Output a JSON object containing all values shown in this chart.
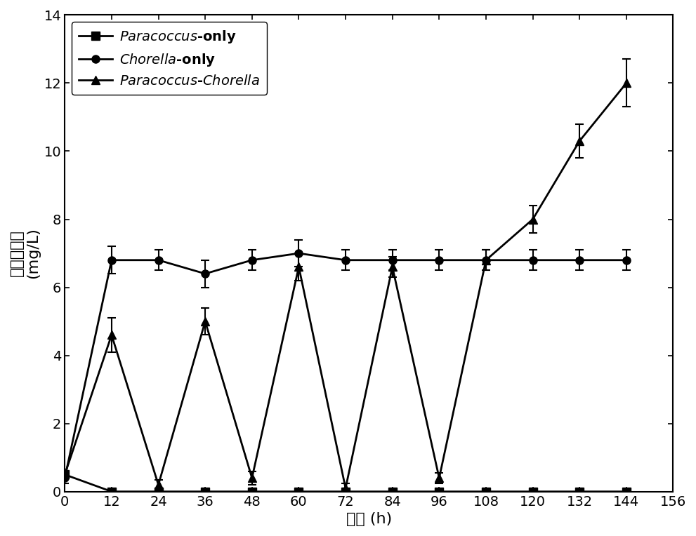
{
  "x": [
    0,
    12,
    24,
    36,
    48,
    60,
    72,
    84,
    96,
    108,
    120,
    132,
    144
  ],
  "paracoccus_only": [
    0.5,
    0.0,
    0.0,
    0.0,
    0.0,
    0.0,
    0.0,
    0.0,
    0.0,
    0.0,
    0.0,
    0.0,
    0.0
  ],
  "paracoccus_only_err": [
    0.1,
    0.05,
    0.05,
    0.05,
    0.05,
    0.05,
    0.05,
    0.05,
    0.05,
    0.05,
    0.05,
    0.05,
    0.05
  ],
  "chorella_only": [
    0.4,
    6.8,
    6.8,
    6.4,
    6.8,
    7.0,
    6.8,
    6.8,
    6.8,
    6.8,
    6.8,
    6.8,
    6.8
  ],
  "chorella_only_err": [
    0.15,
    0.4,
    0.3,
    0.4,
    0.3,
    0.4,
    0.3,
    0.3,
    0.3,
    0.3,
    0.3,
    0.3,
    0.3
  ],
  "paracoccus_chorella": [
    0.5,
    4.6,
    0.2,
    5.0,
    0.4,
    6.6,
    0.1,
    6.6,
    0.4,
    6.8,
    8.0,
    10.3,
    12.0
  ],
  "paracoccus_chorella_err": [
    0.1,
    0.5,
    0.15,
    0.4,
    0.2,
    0.4,
    0.15,
    0.3,
    0.15,
    0.3,
    0.4,
    0.5,
    0.7
  ],
  "xlabel": "时间 (h)",
  "ylabel_line1": "溶解氧浓度",
  "ylabel_line2": "(mg/L)",
  "xlim": [
    0,
    156
  ],
  "ylim": [
    0,
    14
  ],
  "xticks": [
    0,
    12,
    24,
    36,
    48,
    60,
    72,
    84,
    96,
    108,
    120,
    132,
    144,
    156
  ],
  "yticks": [
    0,
    2,
    4,
    6,
    8,
    10,
    12,
    14
  ],
  "line_color": "#000000",
  "marker_paracoccus": "s",
  "marker_chorella": "o",
  "marker_paracoccus_chorella": "^",
  "linewidth": 2.0,
  "markersize": 8,
  "label_fontsize": 16,
  "tick_fontsize": 14,
  "legend_fontsize": 14
}
